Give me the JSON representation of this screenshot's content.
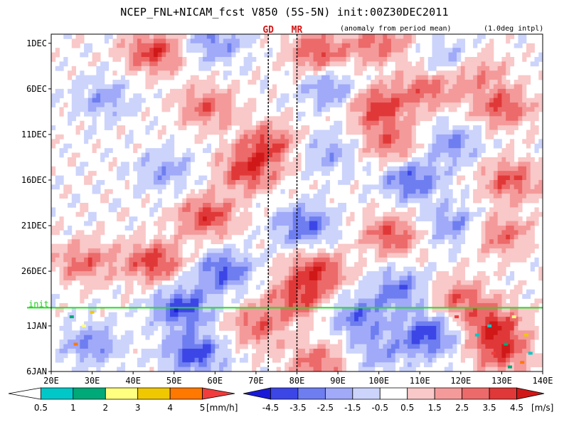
{
  "header": {
    "title": "NCEP_FNL+NICAM_fcst V850 (5S-5N) init:00Z30DEC2011",
    "subtitle": "(anomaly from period mean)",
    "note": "(1.0deg intpl)"
  },
  "chart_data": {
    "type": "heatmap",
    "title": "NCEP_FNL+NICAM_fcst V850 (5S-5N) init:00Z30DEC2011",
    "subtitle": "(anomaly from period mean)",
    "x_ticks": [
      "20E",
      "30E",
      "40E",
      "50E",
      "60E",
      "70E",
      "80E",
      "90E",
      "100E",
      "110E",
      "120E",
      "130E",
      "140E"
    ],
    "x_values": [
      20,
      30,
      40,
      50,
      60,
      70,
      80,
      90,
      100,
      110,
      120,
      130,
      140
    ],
    "xlim": [
      20,
      140
    ],
    "y_ticks": [
      "1DEC",
      "6DEC",
      "11DEC",
      "16DEC",
      "21DEC",
      "26DEC",
      "1JAN",
      "6JAN"
    ],
    "y_values": [
      0,
      5,
      10,
      15,
      20,
      25,
      31,
      36
    ],
    "ylim": [
      -1,
      36
    ],
    "markers": [
      {
        "label": "GD",
        "lon": 73
      },
      {
        "label": "MR",
        "lon": 80
      }
    ],
    "init_line": {
      "label": "init",
      "day": 29.0,
      "color": "#22dd22"
    },
    "wind_colorbar": {
      "unit": "[m/s]",
      "ticks": [
        "-4.5",
        "-3.5",
        "-2.5",
        "-1.5",
        "-0.5",
        "0.5",
        "1.5",
        "2.5",
        "3.5",
        "4.5"
      ],
      "colors": [
        "#1a1ad8",
        "#3c46e6",
        "#6e7ef0",
        "#a0aaf8",
        "#ccd4fb",
        "#ffffff",
        "#f9c8c8",
        "#f49a9a",
        "#ec6a6a",
        "#e03838",
        "#d01818"
      ]
    },
    "rain_colorbar": {
      "unit": "[mm/h]",
      "ticks": [
        "0.5",
        "1",
        "2",
        "3",
        "4",
        "5"
      ],
      "colors": [
        "#ffffff",
        "#00c8c8",
        "#00aa78",
        "#ffff80",
        "#f0c800",
        "#ff7800",
        "#f03c3c"
      ]
    },
    "anomaly_blobs": [
      {
        "lon": 45,
        "day": 1,
        "v": 4.0
      },
      {
        "lon": 85,
        "day": 1,
        "v": 3.5
      },
      {
        "lon": 100,
        "day": 0,
        "v": 3.0
      },
      {
        "lon": 60,
        "day": 0,
        "v": -2.5
      },
      {
        "lon": 118,
        "day": 2,
        "v": -2.5
      },
      {
        "lon": 123,
        "day": 3,
        "v": 3.0
      },
      {
        "lon": 33,
        "day": 6,
        "v": -2.0
      },
      {
        "lon": 58,
        "day": 7,
        "v": 3.0
      },
      {
        "lon": 100,
        "day": 7,
        "v": 4.0
      },
      {
        "lon": 130,
        "day": 7,
        "v": 3.5
      },
      {
        "lon": 88,
        "day": 5,
        "v": -2.5
      },
      {
        "lon": 112,
        "day": 5,
        "v": 3.0
      },
      {
        "lon": 73,
        "day": 11,
        "v": 3.5
      },
      {
        "lon": 103,
        "day": 11,
        "v": 3.0
      },
      {
        "lon": 88,
        "day": 12,
        "v": -2.0
      },
      {
        "lon": 118,
        "day": 11,
        "v": -2.5
      },
      {
        "lon": 68,
        "day": 14,
        "v": 4.0
      },
      {
        "lon": 108,
        "day": 15,
        "v": -3.5
      },
      {
        "lon": 132,
        "day": 15,
        "v": 3.5
      },
      {
        "lon": 48,
        "day": 14,
        "v": -2.0
      },
      {
        "lon": 58,
        "day": 19,
        "v": 4.0
      },
      {
        "lon": 82,
        "day": 20,
        "v": -3.5
      },
      {
        "lon": 103,
        "day": 21,
        "v": 3.5
      },
      {
        "lon": 130,
        "day": 21,
        "v": 3.0
      },
      {
        "lon": 118,
        "day": 20,
        "v": -2.5
      },
      {
        "lon": 28,
        "day": 24,
        "v": 3.0
      },
      {
        "lon": 45,
        "day": 24,
        "v": 4.0
      },
      {
        "lon": 62,
        "day": 25,
        "v": -3.5
      },
      {
        "lon": 85,
        "day": 25,
        "v": 4.0
      },
      {
        "lon": 105,
        "day": 27,
        "v": -3.0
      },
      {
        "lon": 52,
        "day": 29,
        "v": -4.0
      },
      {
        "lon": 120,
        "day": 28,
        "v": 3.0
      },
      {
        "lon": 80,
        "day": 28,
        "v": 3.5
      },
      {
        "lon": 95,
        "day": 30,
        "v": -3.0
      },
      {
        "lon": 112,
        "day": 32,
        "v": -4.0
      },
      {
        "lon": 130,
        "day": 34,
        "v": 3.5
      },
      {
        "lon": 55,
        "day": 34,
        "v": -4.0
      },
      {
        "lon": 85,
        "day": 35,
        "v": 3.0
      },
      {
        "lon": 100,
        "day": 34,
        "v": -2.0
      },
      {
        "lon": 128,
        "day": 31,
        "v": 4.0
      },
      {
        "lon": 30,
        "day": 33,
        "v": -2.5
      },
      {
        "lon": 70,
        "day": 31,
        "v": 3.0
      }
    ],
    "rain_points": [
      {
        "lon": 127,
        "day": 31
      },
      {
        "lon": 131,
        "day": 33
      },
      {
        "lon": 133,
        "day": 30
      },
      {
        "lon": 136,
        "day": 32
      },
      {
        "lon": 135,
        "day": 35
      },
      {
        "lon": 128,
        "day": 34
      },
      {
        "lon": 124,
        "day": 32
      },
      {
        "lon": 25,
        "day": 30
      },
      {
        "lon": 28,
        "day": 31
      },
      {
        "lon": 30,
        "day": 29.5
      },
      {
        "lon": 26,
        "day": 33
      },
      {
        "lon": 119,
        "day": 30
      },
      {
        "lon": 137,
        "day": 34
      },
      {
        "lon": 132,
        "day": 35.5
      }
    ]
  }
}
